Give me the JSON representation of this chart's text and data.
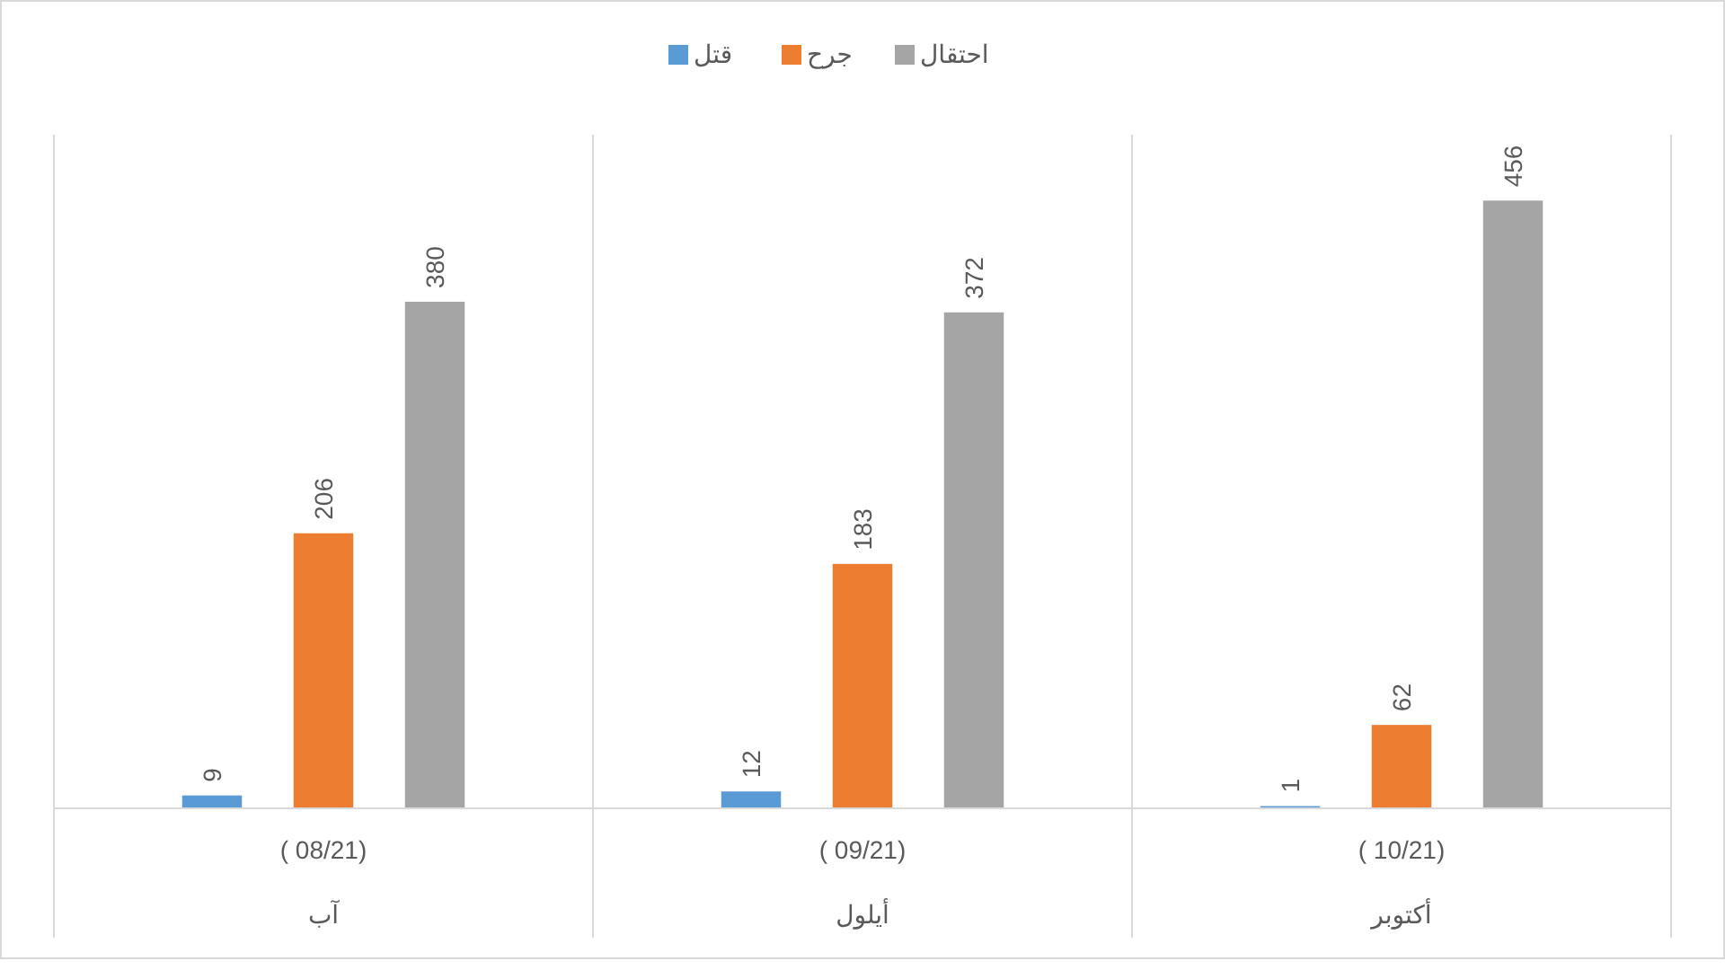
{
  "chart_data": {
    "type": "bar",
    "categories": [
      "آب",
      "أيلول",
      "أكتوبر"
    ],
    "annotations": [
      "( 08/21)",
      "( 09/21)",
      "( 10/21)"
    ],
    "series": [
      {
        "name": "قتل",
        "color": "#5b9bd5",
        "values": [
          9,
          12,
          1
        ]
      },
      {
        "name": "جرح",
        "color": "#ed7d31",
        "values": [
          206,
          183,
          62
        ]
      },
      {
        "name": "احتقال",
        "color": "#a5a5a5",
        "values": [
          380,
          372,
          456
        ]
      }
    ],
    "data_labels": true,
    "legend": "top",
    "grid": false
  }
}
